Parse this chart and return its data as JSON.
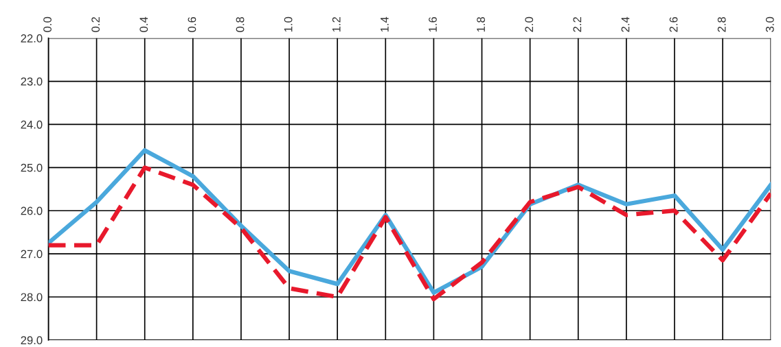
{
  "chart_data": {
    "type": "line",
    "x": [
      0.0,
      0.2,
      0.4,
      0.6,
      0.8,
      1.0,
      1.2,
      1.4,
      1.6,
      1.8,
      2.0,
      2.2,
      2.4,
      2.6,
      2.8,
      3.0
    ],
    "series": [
      {
        "color": "#4aa8dc",
        "line_style": "solid",
        "values": [
          26.75,
          25.8,
          24.6,
          25.2,
          26.35,
          27.4,
          27.7,
          26.1,
          27.9,
          27.3,
          25.85,
          25.4,
          25.85,
          25.65,
          26.9,
          25.4
        ]
      },
      {
        "color": "#e8192c",
        "line_style": "dashed",
        "values": [
          26.8,
          26.8,
          25.0,
          25.4,
          26.4,
          27.8,
          28.0,
          26.15,
          28.05,
          27.2,
          25.8,
          25.45,
          26.1,
          26.0,
          27.15,
          25.6
        ]
      }
    ],
    "xlim": [
      0.0,
      3.0
    ],
    "xticks": [
      {
        "value": 0.0,
        "label": "0.0"
      },
      0.2,
      0.4,
      0.6,
      0.8,
      {
        "value": 1.0,
        "label": "1.0"
      },
      1.2,
      1.4,
      1.6,
      1.8,
      {
        "value": 2.0,
        "label": "2.0"
      },
      2.2,
      2.4,
      2.6,
      2.8,
      {
        "value": 3.0,
        "label": "3.0"
      }
    ],
    "ylim": [
      29.0,
      22.0
    ],
    "yticks": [
      {
        "value": 22.0,
        "label": "22.0"
      },
      {
        "value": 23.0,
        "label": "23.0"
      },
      {
        "value": 24.0,
        "label": "24.0"
      },
      {
        "value": 25.0,
        "label": "25.0"
      },
      {
        "value": 26.0,
        "label": "26.0"
      },
      {
        "value": 27.0,
        "label": "27.0"
      },
      {
        "value": 28.0,
        "label": "28.0"
      },
      {
        "value": 29.0,
        "label": "29.0"
      }
    ],
    "grid": true,
    "marker": "none"
  }
}
